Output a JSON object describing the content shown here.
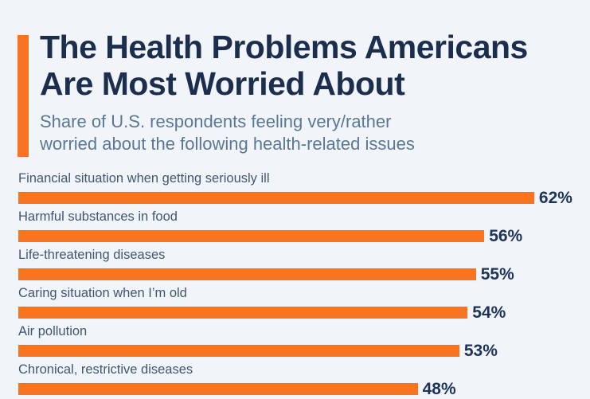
{
  "colors": {
    "background": "#f1f5f9",
    "accent": "#f97420",
    "bar": "#f97420",
    "title": "#1b2e4e",
    "subtitle": "#5b7795",
    "label": "#415572",
    "value": "#1d3357"
  },
  "chart_data": {
    "type": "bar",
    "orientation": "horizontal",
    "title": "The Health Problems Americans Are Most Worried About",
    "title_lines": [
      "The Health Problems Americans",
      "Are Most Worried About"
    ],
    "subtitle": "Share of U.S. respondents feeling very/rather worried about the following health-related issues",
    "subtitle_lines": [
      "Share of U.S. respondents feeling very/rather",
      "worried about the following health-related issues"
    ],
    "categories": [
      "Financial situation when getting seriously ill",
      "Harmful substances in food",
      "Life-threatening diseases",
      "Caring situation when I’m old",
      "Air pollution",
      "Chronical, restrictive diseases"
    ],
    "values": [
      62,
      56,
      55,
      54,
      53,
      48
    ],
    "value_labels": [
      "62%",
      "56%",
      "55%",
      "54%",
      "53%",
      "48%"
    ],
    "unit": "%",
    "xlim": [
      0,
      68
    ],
    "grid": false,
    "legend": false,
    "bar_color": "#f97420",
    "note": "last row partially cut off at bottom edge of image"
  }
}
